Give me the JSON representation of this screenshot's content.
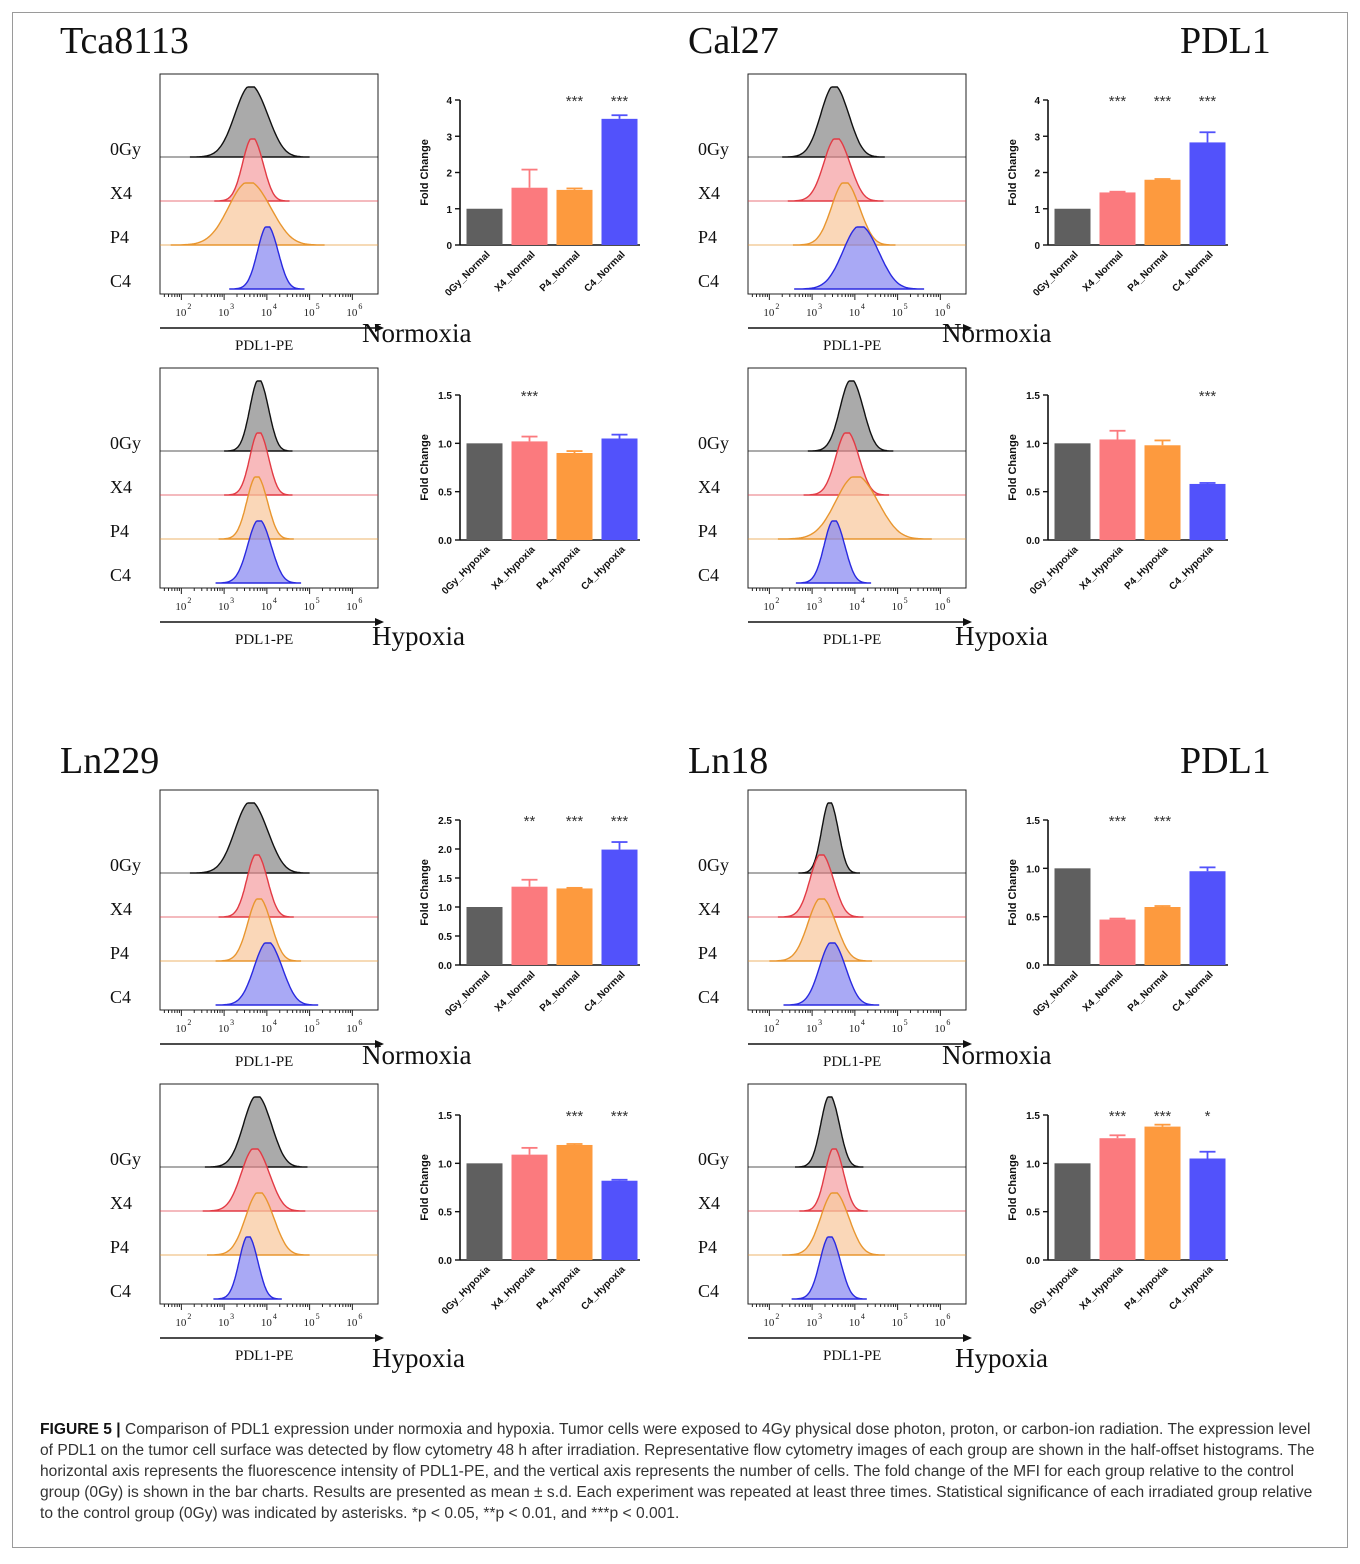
{
  "histogram_axis": {
    "xlabel": "PDL1-PE",
    "tick_exponents": [
      "2",
      "3",
      "4",
      "5",
      "6"
    ],
    "tick_base": "10",
    "row_labels": [
      "0Gy",
      "X4",
      "P4",
      "C4"
    ]
  },
  "colors": {
    "0Gy": "#5f5f5f",
    "X4": "#fb7a7e",
    "P4": "#fd9a3e",
    "C4": "#5252fb",
    "hist_0Gy_line": "#111111",
    "hist_X4_line": "#e23b45",
    "hist_P4_line": "#e8962f",
    "hist_C4_line": "#2a2ae0",
    "hist_0Gy_fill": "#8e8e8e",
    "hist_X4_fill": "#f6a3a6",
    "hist_P4_fill": "#f8caa0",
    "hist_C4_fill": "#8c8cf2",
    "divider": "#c9c9c9"
  },
  "block_headers": [
    {
      "left": "Tca8113",
      "middle": "Cal27",
      "right": "PDL1"
    },
    {
      "left": "Ln229",
      "middle": "Ln18",
      "right": "PDL1"
    }
  ],
  "condition_labels": [
    "Normoxia",
    "Hypoxia",
    "Hypoxia",
    "Normoxia",
    "Normoxia",
    "Hypoxia",
    "Hypoxia",
    "Normoxia"
  ],
  "panels": [
    {
      "id": "tca-normal",
      "block": 0,
      "col": 0,
      "row": 0,
      "condition": "Normoxia",
      "hist_peaks_log10": [
        3.6,
        3.65,
        3.55,
        4.0
      ],
      "hist_widths": [
        0.35,
        0.22,
        0.45,
        0.22
      ]
    },
    {
      "id": "cal-normal",
      "block": 0,
      "col": 1,
      "row": 0,
      "condition": "Normoxia",
      "hist_peaks_log10": [
        3.5,
        3.55,
        3.75,
        4.1
      ],
      "hist_widths": [
        0.3,
        0.28,
        0.3,
        0.38
      ]
    },
    {
      "id": "tca-hyp",
      "block": 0,
      "col": 0,
      "row": 1,
      "condition": "Hypoxia",
      "hist_peaks_log10": [
        3.8,
        3.8,
        3.75,
        3.8
      ],
      "hist_widths": [
        0.2,
        0.2,
        0.22,
        0.25
      ]
    },
    {
      "id": "cal-hyp",
      "block": 0,
      "col": 1,
      "row": 1,
      "condition": "Hypoxia",
      "hist_peaks_log10": [
        3.9,
        3.8,
        4.0,
        3.5
      ],
      "hist_widths": [
        0.25,
        0.25,
        0.45,
        0.22
      ]
    },
    {
      "id": "ln229-normal",
      "block": 1,
      "col": 0,
      "row": 0,
      "condition": "Normoxia",
      "hist_peaks_log10": [
        3.6,
        3.75,
        3.8,
        4.0
      ],
      "hist_widths": [
        0.35,
        0.22,
        0.25,
        0.3
      ]
    },
    {
      "id": "ln18-normal",
      "block": 1,
      "col": 1,
      "row": 0,
      "condition": "Normoxia",
      "hist_peaks_log10": [
        3.4,
        3.2,
        3.2,
        3.45
      ],
      "hist_widths": [
        0.18,
        0.25,
        0.3,
        0.28
      ]
    },
    {
      "id": "ln229-hyp",
      "block": 1,
      "col": 0,
      "row": 1,
      "condition": "Hypoxia",
      "hist_peaks_log10": [
        3.75,
        3.7,
        3.8,
        3.55
      ],
      "hist_widths": [
        0.3,
        0.3,
        0.3,
        0.2
      ]
    },
    {
      "id": "ln18-hyp",
      "block": 1,
      "col": 1,
      "row": 1,
      "condition": "Hypoxia",
      "hist_peaks_log10": [
        3.4,
        3.5,
        3.5,
        3.4
      ],
      "hist_widths": [
        0.2,
        0.2,
        0.3,
        0.22
      ]
    }
  ],
  "chart_data": [
    {
      "type": "bar",
      "id": "tca-normal",
      "ylabel": "Fold Change",
      "ylim": [
        0,
        4
      ],
      "yticks": [
        "0",
        "1",
        "2",
        "3",
        "4"
      ],
      "categories": [
        "0Gy_Normal",
        "X4_Normal",
        "P4_Normal",
        "C4_Normal"
      ],
      "values": [
        1.0,
        1.58,
        1.52,
        3.48
      ],
      "errors": [
        0.0,
        0.5,
        0.04,
        0.1
      ],
      "significance": [
        "",
        "",
        "***",
        "***"
      ]
    },
    {
      "type": "bar",
      "id": "cal-normal",
      "ylabel": "Fold Change",
      "ylim": [
        0,
        4
      ],
      "yticks": [
        "0",
        "1",
        "2",
        "3",
        "4"
      ],
      "categories": [
        "0Gy_Normal",
        "X4_Normal",
        "P4_Normal",
        "C4_Normal"
      ],
      "values": [
        1.0,
        1.45,
        1.8,
        2.83
      ],
      "errors": [
        0.0,
        0.02,
        0.02,
        0.28
      ],
      "significance": [
        "",
        "***",
        "***",
        "***"
      ]
    },
    {
      "type": "bar",
      "id": "tca-hyp",
      "ylabel": "Fold Change",
      "ylim": [
        0,
        1.5
      ],
      "yticks": [
        "0.0",
        "0.5",
        "1.0",
        "1.5"
      ],
      "categories": [
        "0Gy_Hypoxia",
        "X4_Hypoxia",
        "P4_Hypoxia",
        "C4_Hypoxia"
      ],
      "values": [
        1.0,
        1.02,
        0.9,
        1.05
      ],
      "errors": [
        0.0,
        0.05,
        0.02,
        0.04
      ],
      "significance": [
        "",
        "***",
        "",
        ""
      ]
    },
    {
      "type": "bar",
      "id": "cal-hyp",
      "ylabel": "Fold Change",
      "ylim": [
        0,
        1.5
      ],
      "yticks": [
        "0.0",
        "0.5",
        "1.0",
        "1.5"
      ],
      "categories": [
        "0Gy_Hypoxia",
        "X4_Hypoxia",
        "P4_Hypoxia",
        "C4_Hypoxia"
      ],
      "values": [
        1.0,
        1.04,
        0.98,
        0.58
      ],
      "errors": [
        0.0,
        0.09,
        0.05,
        0.01
      ],
      "significance": [
        "",
        "",
        "",
        "***"
      ]
    },
    {
      "type": "bar",
      "id": "ln229-normal",
      "ylabel": "Fold Change",
      "ylim": [
        0,
        2.5
      ],
      "yticks": [
        "0.0",
        "0.5",
        "1.0",
        "1.5",
        "2.0",
        "2.5"
      ],
      "categories": [
        "0Gy_Normal",
        "X4_Normal",
        "P4_Normal",
        "C4_Normal"
      ],
      "values": [
        1.0,
        1.35,
        1.32,
        1.99
      ],
      "errors": [
        0.0,
        0.12,
        0.01,
        0.13
      ],
      "significance": [
        "",
        "**",
        "***",
        "***"
      ]
    },
    {
      "type": "bar",
      "id": "ln18-normal",
      "ylabel": "Fold Change",
      "ylim": [
        0,
        1.5
      ],
      "yticks": [
        "0.0",
        "0.5",
        "1.0",
        "1.5"
      ],
      "categories": [
        "0Gy_Normal",
        "X4_Normal",
        "P4_Normal",
        "C4_Normal"
      ],
      "values": [
        1.0,
        0.47,
        0.6,
        0.97
      ],
      "errors": [
        0.0,
        0.01,
        0.01,
        0.04
      ],
      "significance": [
        "",
        "***",
        "***",
        ""
      ]
    },
    {
      "type": "bar",
      "id": "ln229-hyp",
      "ylabel": "Fold Change",
      "ylim": [
        0,
        1.5
      ],
      "yticks": [
        "0.0",
        "0.5",
        "1.0",
        "1.5"
      ],
      "categories": [
        "0Gy_Hypoxia",
        "X4_Hypoxia",
        "P4_Hypoxia",
        "C4_Hypoxia"
      ],
      "values": [
        1.0,
        1.09,
        1.19,
        0.82
      ],
      "errors": [
        0.0,
        0.07,
        0.01,
        0.01
      ],
      "significance": [
        "",
        "",
        "***",
        "***"
      ]
    },
    {
      "type": "bar",
      "id": "ln18-hyp",
      "ylabel": "Fold Change",
      "ylim": [
        0,
        1.5
      ],
      "yticks": [
        "0.0",
        "0.5",
        "1.0",
        "1.5"
      ],
      "categories": [
        "0Gy_Hypoxia",
        "X4_Hypoxia",
        "P4_Hypoxia",
        "C4_Hypoxia"
      ],
      "values": [
        1.0,
        1.26,
        1.38,
        1.05
      ],
      "errors": [
        0.0,
        0.03,
        0.02,
        0.07
      ],
      "significance": [
        "",
        "***",
        "***",
        "*"
      ]
    }
  ],
  "caption": {
    "label": "FIGURE 5 |",
    "text": "Comparison of PDL1 expression under normoxia and hypoxia. Tumor cells were exposed to 4Gy physical dose photon, proton, or carbon-ion radiation. The expression level of PDL1 on the tumor cell surface was detected by flow cytometry 48 h after irradiation. Representative flow cytometry images of each group are shown in the half-offset histograms. The horizontal axis represents the fluorescence intensity of PDL1-PE, and the vertical axis represents the number of cells. The fold change of the MFI for each group relative to the control group (0Gy) is shown in the bar charts. Results are presented as mean ± s.d. Each experiment was repeated at least three times. Statistical significance of each irradiated group relative to the control group (0Gy) was indicated by asterisks. *p < 0.05, **p < 0.01, and ***p < 0.001."
  }
}
